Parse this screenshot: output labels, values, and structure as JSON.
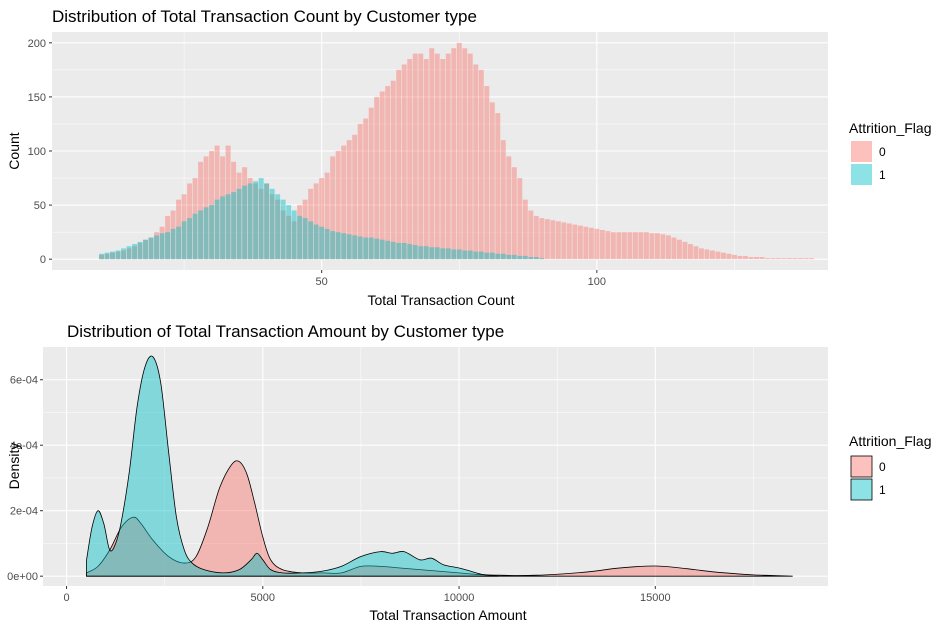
{
  "colors": {
    "panel_bg": "#ebebeb",
    "grid_major": "#ffffff",
    "retained": "#f8766d",
    "attrited": "#00bfc4"
  },
  "chart_data": [
    {
      "type": "bar",
      "title": "Distribution of Total Transaction Count by Customer type",
      "xlabel": "Total Transaction Count",
      "ylabel": "Count",
      "xlim": [
        1,
        142
      ],
      "ylim": [
        -10,
        210
      ],
      "x_ticks": [
        50,
        100
      ],
      "y_ticks": [
        0,
        50,
        100,
        150,
        200
      ],
      "legend": {
        "title": "Attrition_Flag",
        "position": "right",
        "labels": [
          "0",
          "1"
        ]
      },
      "bar_width": 0.9,
      "series": [
        {
          "name": "0",
          "x": [
            10,
            11,
            12,
            13,
            14,
            15,
            16,
            17,
            18,
            19,
            20,
            21,
            22,
            23,
            24,
            25,
            26,
            27,
            28,
            29,
            30,
            31,
            32,
            33,
            34,
            35,
            36,
            37,
            38,
            39,
            40,
            41,
            42,
            43,
            44,
            45,
            46,
            47,
            48,
            49,
            50,
            51,
            52,
            53,
            54,
            55,
            56,
            57,
            58,
            59,
            60,
            61,
            62,
            63,
            64,
            65,
            66,
            67,
            68,
            69,
            70,
            71,
            72,
            73,
            74,
            75,
            76,
            77,
            78,
            79,
            80,
            81,
            82,
            83,
            84,
            85,
            86,
            87,
            88,
            89,
            90,
            91,
            92,
            93,
            94,
            95,
            96,
            97,
            98,
            99,
            100,
            101,
            102,
            103,
            104,
            105,
            106,
            107,
            108,
            109,
            110,
            111,
            112,
            113,
            114,
            115,
            116,
            117,
            118,
            119,
            120,
            121,
            122,
            123,
            124,
            125,
            126,
            127,
            128,
            129,
            130,
            131,
            132,
            133,
            134,
            135,
            136,
            137,
            138,
            139
          ],
          "values": [
            4,
            5,
            6,
            7,
            8,
            10,
            12,
            15,
            18,
            20,
            25,
            30,
            40,
            45,
            55,
            60,
            70,
            75,
            90,
            95,
            100,
            105,
            95,
            105,
            90,
            80,
            85,
            75,
            70,
            65,
            70,
            60,
            55,
            45,
            40,
            35,
            50,
            55,
            65,
            70,
            75,
            80,
            95,
            100,
            105,
            110,
            115,
            125,
            130,
            140,
            150,
            155,
            160,
            165,
            175,
            180,
            185,
            190,
            190,
            185,
            195,
            190,
            185,
            190,
            195,
            200,
            195,
            190,
            180,
            175,
            160,
            145,
            135,
            110,
            95,
            85,
            75,
            55,
            45,
            40,
            38,
            37,
            36,
            35,
            34,
            33,
            32,
            31,
            30,
            29,
            28,
            27,
            26,
            25,
            25,
            25,
            25,
            25,
            25,
            25,
            24,
            24,
            23,
            22,
            20,
            18,
            16,
            14,
            12,
            10,
            9,
            8,
            7,
            6,
            5,
            4,
            3,
            3,
            2,
            2,
            2,
            1,
            1,
            1,
            1,
            1,
            1,
            1,
            1,
            1
          ]
        },
        {
          "name": "1",
          "x": [
            10,
            11,
            12,
            13,
            14,
            15,
            16,
            17,
            18,
            19,
            20,
            21,
            22,
            23,
            24,
            25,
            26,
            27,
            28,
            29,
            30,
            31,
            32,
            33,
            34,
            35,
            36,
            37,
            38,
            39,
            40,
            41,
            42,
            43,
            44,
            45,
            46,
            47,
            48,
            49,
            50,
            51,
            52,
            53,
            54,
            55,
            56,
            57,
            58,
            59,
            60,
            61,
            62,
            63,
            64,
            65,
            66,
            67,
            68,
            69,
            70,
            71,
            72,
            73,
            74,
            75,
            76,
            77,
            78,
            79,
            80,
            81,
            82,
            83,
            84,
            85,
            86,
            87,
            88,
            89,
            90
          ],
          "values": [
            5,
            6,
            7,
            8,
            10,
            12,
            14,
            16,
            18,
            20,
            22,
            24,
            25,
            28,
            30,
            35,
            38,
            42,
            45,
            48,
            50,
            55,
            58,
            60,
            62,
            65,
            68,
            70,
            72,
            75,
            70,
            65,
            60,
            55,
            50,
            45,
            40,
            38,
            35,
            32,
            30,
            28,
            26,
            25,
            24,
            23,
            22,
            21,
            20,
            20,
            19,
            18,
            17,
            16,
            15,
            15,
            14,
            13,
            12,
            12,
            11,
            11,
            10,
            10,
            9,
            9,
            8,
            8,
            7,
            7,
            6,
            6,
            5,
            5,
            4,
            4,
            3,
            3,
            2,
            2,
            1
          ]
        }
      ]
    },
    {
      "type": "area",
      "title": "Distribution of Total Transaction Amount by Customer type",
      "xlabel": "Total Transaction Amount",
      "ylabel": "Density",
      "xlim": [
        -600,
        19400
      ],
      "ylim": [
        -3e-05,
        0.0007
      ],
      "x_ticks": [
        0,
        5000,
        10000,
        15000
      ],
      "y_ticks": [
        0,
        0.0002,
        0.0004,
        0.0006
      ],
      "y_tick_labels": [
        "0e+00",
        "2e-04",
        "4e-04",
        "6e-04"
      ],
      "legend": {
        "title": "Attrition_Flag",
        "position": "right",
        "labels": [
          "0",
          "1"
        ]
      },
      "series": [
        {
          "name": "0",
          "x": [
            510,
            800,
            1100,
            1400,
            1700,
            1900,
            2200,
            2600,
            3000,
            3300,
            3600,
            3900,
            4200,
            4400,
            4600,
            4800,
            5000,
            5200,
            5500,
            6000,
            6500,
            7000,
            7500,
            8000,
            8500,
            9000,
            9500,
            10000,
            10500,
            11000,
            11500,
            12000,
            12500,
            13000,
            13500,
            14000,
            14500,
            15000,
            15500,
            16000,
            16500,
            17000,
            17500,
            18000,
            18500
          ],
          "y": [
            1e-05,
            3e-05,
            8e-05,
            0.00015,
            0.00018,
            0.00016,
            0.00011,
            6e-05,
            4e-05,
            6e-05,
            0.00015,
            0.00027,
            0.00034,
            0.00035,
            0.00031,
            0.00022,
            0.00012,
            5e-05,
            2e-05,
            1e-05,
            1e-05,
            1e-05,
            3e-05,
            3e-05,
            2.5e-05,
            2e-05,
            1.5e-05,
            1e-05,
            5e-06,
            3e-06,
            2e-06,
            3e-06,
            6e-06,
            1e-05,
            1.6e-05,
            2.4e-05,
            2.9e-05,
            3.1e-05,
            2.7e-05,
            2e-05,
            1.3e-05,
            8e-06,
            4e-06,
            2e-06,
            0
          ]
        },
        {
          "name": "1",
          "x": [
            510,
            650,
            800,
            950,
            1100,
            1250,
            1400,
            1600,
            1800,
            2000,
            2200,
            2400,
            2600,
            2800,
            3000,
            3200,
            3500,
            4000,
            4400,
            4700,
            4850,
            5000,
            5200,
            5500,
            6000,
            6500,
            7000,
            7500,
            8000,
            8300,
            8600,
            9000,
            9300,
            9600,
            10000,
            10300,
            10600,
            11000
          ],
          "y": [
            5e-05,
            0.00015,
            0.0002,
            0.00016,
            8e-05,
            0.0001,
            0.00017,
            0.00032,
            0.00052,
            0.00064,
            0.00067,
            0.00059,
            0.00038,
            0.00018,
            8e-05,
            4e-05,
            2e-05,
            1e-05,
            2e-05,
            5e-05,
            7e-05,
            5e-05,
            2e-05,
            1e-05,
            1e-05,
            1.5e-05,
            3e-05,
            6e-05,
            7.5e-05,
            7e-05,
            7.5e-05,
            5e-05,
            5.5e-05,
            3.5e-05,
            2.5e-05,
            1.5e-05,
            5e-06,
            0
          ]
        }
      ]
    }
  ]
}
